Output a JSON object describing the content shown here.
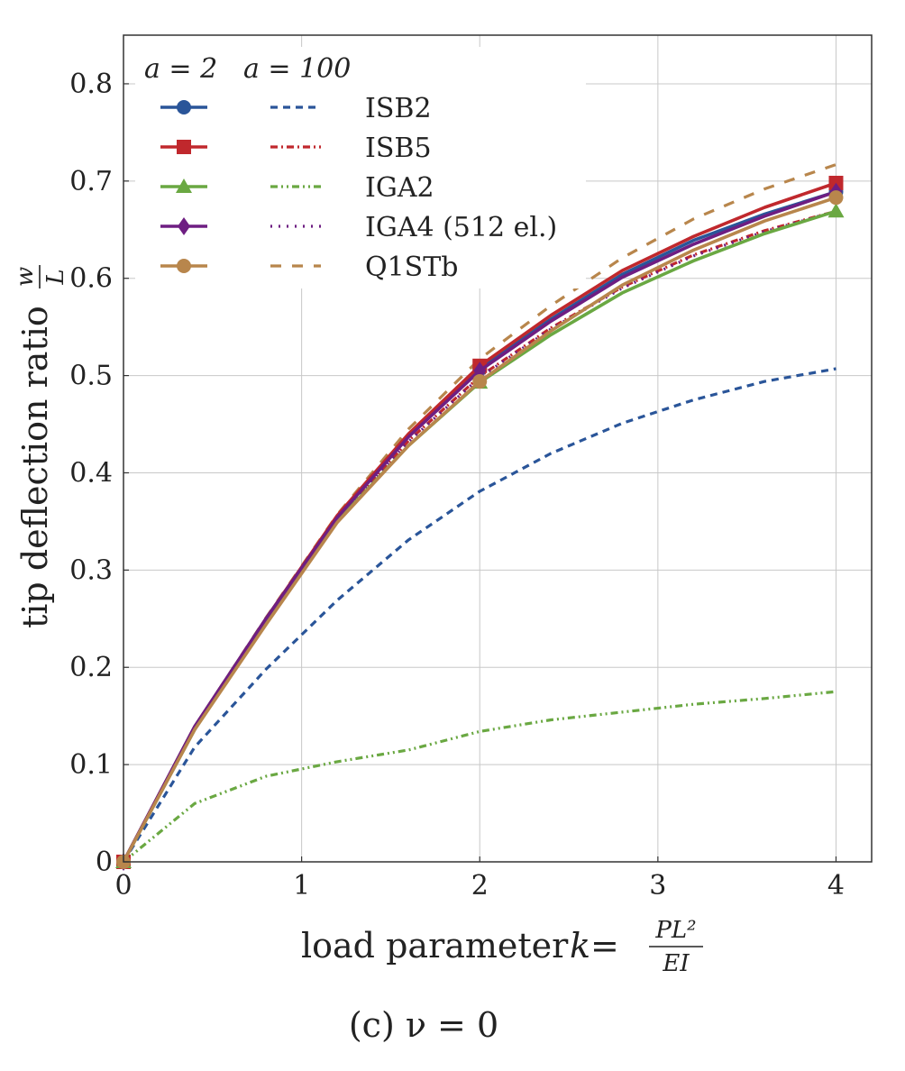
{
  "caption": "(c) ν = 0",
  "chart_data": {
    "type": "line",
    "xlabel": "load parameter k = PL²/EI",
    "xlabel_prefix": "load parameter ",
    "xlabel_var": "k",
    "xlabel_eq": " = ",
    "xlabel_num": "PL²",
    "xlabel_den": "EI",
    "ylabel": "tip deflection ratio w/L",
    "ylabel_prefix": "tip deflection ratio ",
    "ylabel_num": "w",
    "ylabel_den": "L",
    "xlim": [
      0,
      4.2
    ],
    "ylim": [
      0,
      0.85
    ],
    "xticks": [
      0,
      1,
      2,
      3,
      4
    ],
    "xtick_labels": [
      "0",
      "1",
      "2",
      "3",
      "4"
    ],
    "yticks": [
      0,
      0.1,
      0.2,
      0.3,
      0.4,
      0.5,
      0.6,
      0.7,
      0.8
    ],
    "ytick_labels": [
      "0",
      "0.1",
      "0.2",
      "0.3",
      "0.4",
      "0.5",
      "0.6",
      "0.7",
      "0.8"
    ],
    "grid": true,
    "legend": {
      "placement": "top-left",
      "col1_header": "a = 2",
      "col2_header": "a = 100",
      "entries": [
        "ISB2",
        "ISB5",
        "IGA2",
        "IGA4 (512 el.)",
        "Q1STb"
      ]
    },
    "x": [
      0,
      0.4,
      0.8,
      1.2,
      1.6,
      2.0,
      2.4,
      2.8,
      3.2,
      3.6,
      4.0
    ],
    "series": [
      {
        "name": "ISB2",
        "a": 2,
        "color": "#2a5599",
        "dash": "solid",
        "marker": "circle",
        "values": [
          0,
          0.139,
          0.25,
          0.355,
          0.438,
          0.507,
          0.558,
          0.604,
          0.639,
          0.666,
          0.689
        ]
      },
      {
        "name": "ISB5",
        "a": 2,
        "color": "#c0282d",
        "dash": "solid",
        "marker": "square",
        "values": [
          0,
          0.139,
          0.25,
          0.356,
          0.44,
          0.51,
          0.562,
          0.608,
          0.643,
          0.673,
          0.698
        ]
      },
      {
        "name": "IGA2",
        "a": 2,
        "color": "#6aa842",
        "dash": "solid",
        "marker": "triangle",
        "values": [
          0,
          0.136,
          0.246,
          0.35,
          0.428,
          0.493,
          0.542,
          0.585,
          0.618,
          0.646,
          0.669
        ]
      },
      {
        "name": "IGA4 (512 el.)",
        "a": 2,
        "color": "#6e1e82",
        "dash": "solid",
        "marker": "diamond",
        "values": [
          0,
          0.139,
          0.25,
          0.354,
          0.437,
          0.505,
          0.556,
          0.601,
          0.635,
          0.664,
          0.689
        ]
      },
      {
        "name": "Q1STb",
        "a": 2,
        "color": "#b8864c",
        "dash": "solid",
        "marker": "circle",
        "values": [
          0,
          0.136,
          0.244,
          0.349,
          0.428,
          0.494,
          0.546,
          0.593,
          0.629,
          0.659,
          0.683
        ]
      },
      {
        "name": "ISB2",
        "a": 100,
        "color": "#2a5599",
        "dash": "dashed",
        "marker": "none",
        "values": [
          0,
          0.118,
          0.198,
          0.269,
          0.331,
          0.381,
          0.42,
          0.451,
          0.475,
          0.494,
          0.507
        ]
      },
      {
        "name": "ISB5",
        "a": 100,
        "color": "#c0282d",
        "dash": "dashdot",
        "marker": "none",
        "values": [
          0,
          0.137,
          0.247,
          0.352,
          0.433,
          0.499,
          0.549,
          0.591,
          0.624,
          0.649,
          0.669
        ]
      },
      {
        "name": "IGA2",
        "a": 100,
        "color": "#6aa842",
        "dash": "dashdotdot",
        "marker": "none",
        "values": [
          0,
          0.06,
          0.088,
          0.103,
          0.115,
          0.134,
          0.146,
          0.154,
          0.162,
          0.168,
          0.175
        ]
      },
      {
        "name": "IGA4 (512 el.)",
        "a": 100,
        "color": "#6e1e82",
        "dash": "dotted",
        "marker": "none",
        "values": [
          0,
          0.137,
          0.247,
          0.351,
          0.432,
          0.498,
          0.548,
          0.59,
          0.623,
          0.648,
          0.669
        ]
      },
      {
        "name": "Q1STb",
        "a": 100,
        "color": "#b8864c",
        "dash": "longdash",
        "marker": "none",
        "values": [
          0,
          0.139,
          0.251,
          0.357,
          0.445,
          0.517,
          0.572,
          0.621,
          0.661,
          0.692,
          0.717
        ]
      }
    ]
  }
}
